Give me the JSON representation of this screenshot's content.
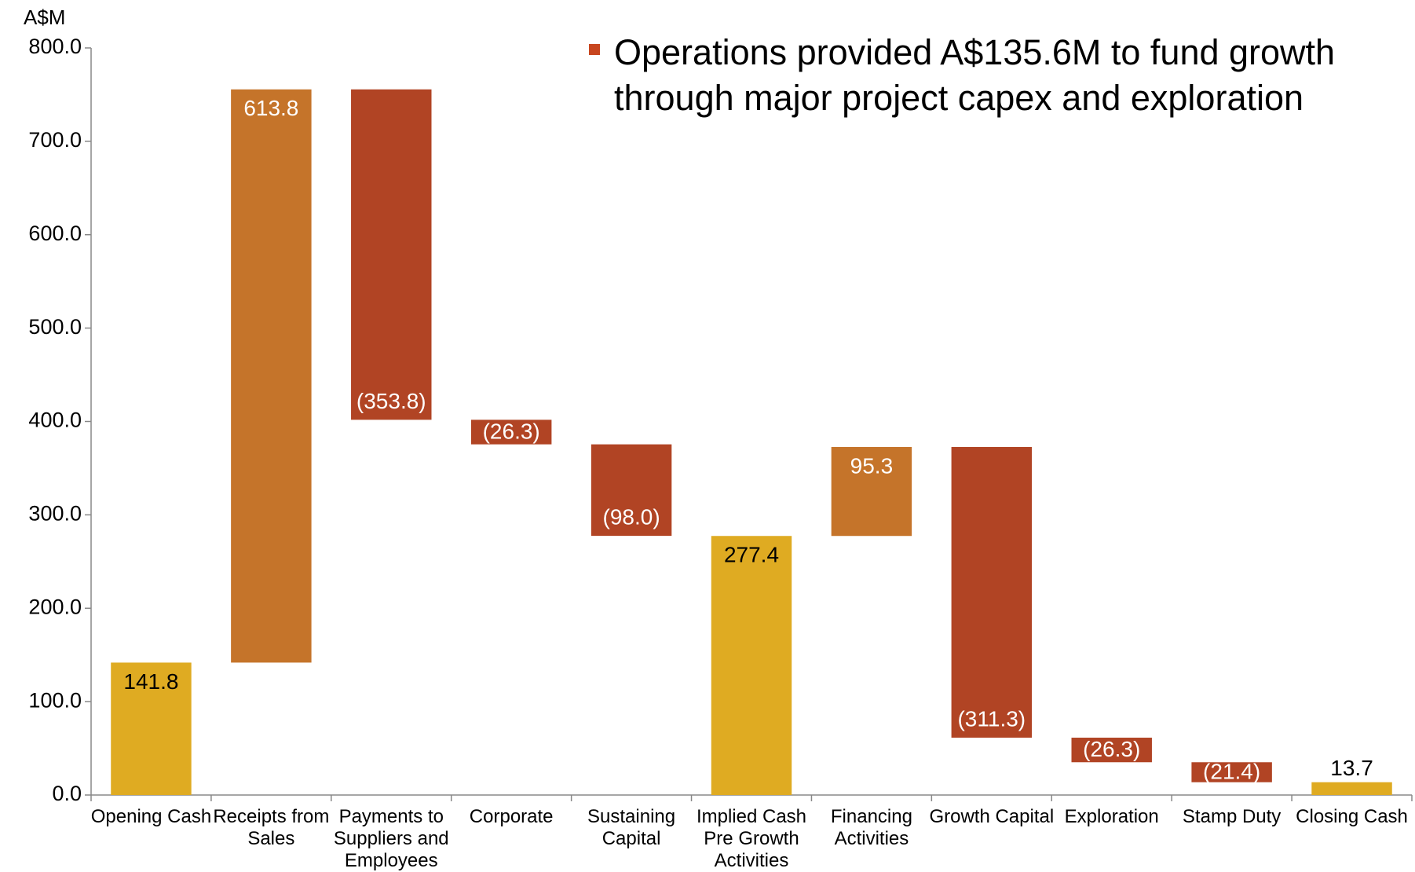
{
  "chart_data": {
    "type": "waterfall",
    "y_unit_label": "A$M",
    "annotation": "Operations provided A$135.6M to fund growth through major project capex and exploration",
    "categories": [
      "Opening Cash",
      "Receipts from Sales",
      "Payments to Suppliers and Employees",
      "Corporate",
      "Sustaining Capital",
      "Implied Cash Pre Growth Activities",
      "Financing Activities",
      "Growth Capital",
      "Exploration",
      "Stamp Duty",
      "Closing Cash"
    ],
    "values": [
      141.8,
      613.8,
      -353.8,
      -26.3,
      -98.0,
      277.4,
      95.3,
      -311.3,
      -26.3,
      -21.4,
      13.7
    ],
    "value_labels": [
      "141.8",
      "613.8",
      "(353.8)",
      "(26.3)",
      "(98.0)",
      "277.4",
      "95.3",
      "(311.3)",
      "(26.3)",
      "(21.4)",
      "13.7"
    ],
    "measure": [
      "total",
      "increase",
      "decrease",
      "decrease",
      "decrease",
      "total",
      "increase",
      "decrease",
      "decrease",
      "decrease",
      "total"
    ],
    "colors": {
      "total": "#dfab22",
      "increase": "#c5742a",
      "decrease": "#b14424"
    },
    "ylim": [
      0,
      800
    ],
    "yticks": [
      {
        "value": 0,
        "label": "0.0"
      },
      {
        "value": 100,
        "label": "100.0"
      },
      {
        "value": 200,
        "label": "200.0"
      },
      {
        "value": 300,
        "label": "300.0"
      },
      {
        "value": 400,
        "label": "400.0"
      },
      {
        "value": 500,
        "label": "500.0"
      },
      {
        "value": 600,
        "label": "600.0"
      },
      {
        "value": 700,
        "label": "700.0"
      },
      {
        "value": 800,
        "label": "800.0"
      }
    ],
    "grid": false
  }
}
